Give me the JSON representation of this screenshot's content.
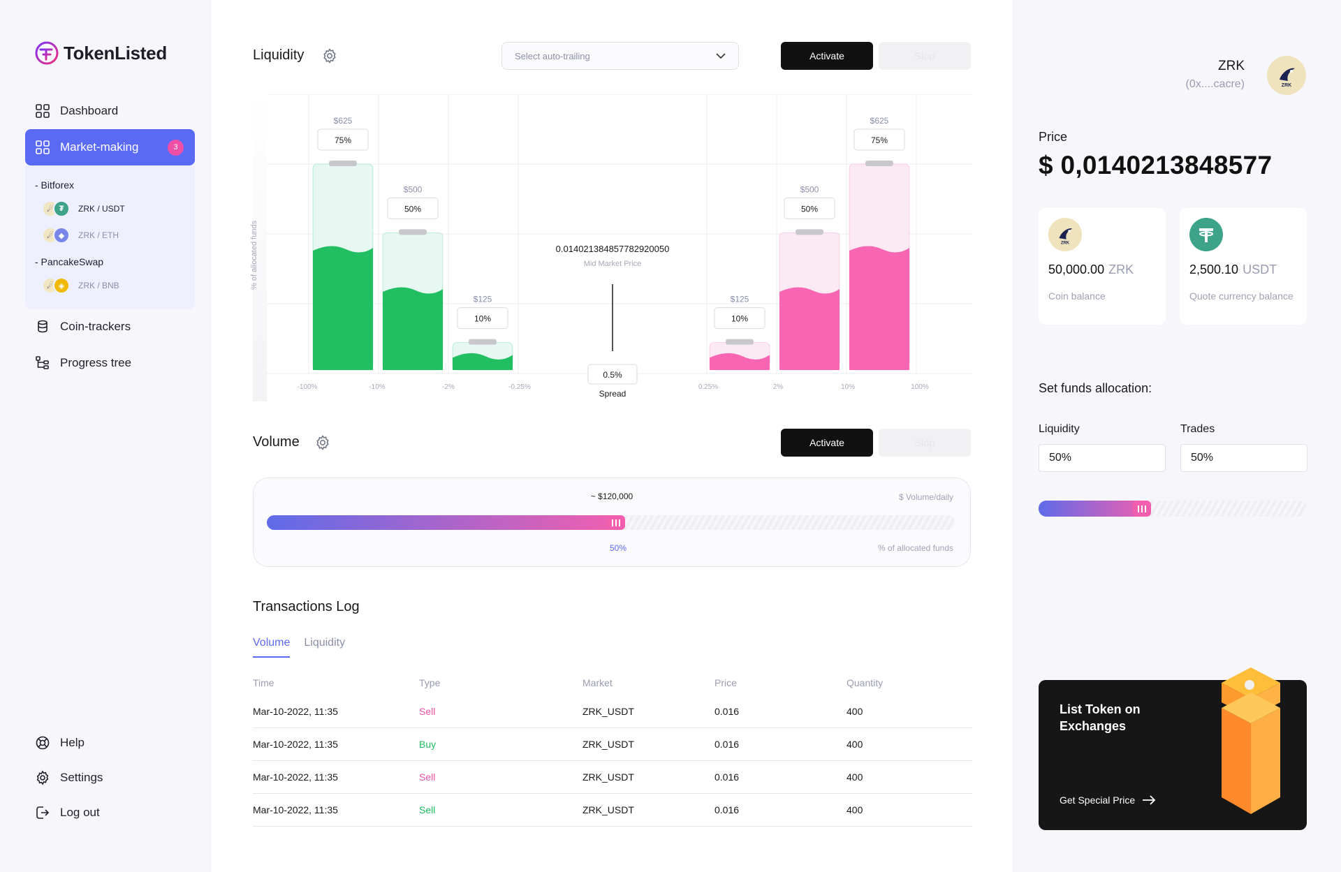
{
  "app": {
    "name": "TokenListed"
  },
  "sidebar": {
    "nav": [
      {
        "label": "Dashboard"
      },
      {
        "label": "Market-making",
        "badge": "3"
      },
      {
        "label": "Coin-trackers"
      },
      {
        "label": "Progress tree"
      }
    ],
    "exchanges": [
      {
        "name": "- Bitforex",
        "pairs": [
          "ZRK / USDT",
          "ZRK / ETH"
        ]
      },
      {
        "name": "- PancakeSwap",
        "pairs": [
          "ZRK / BNB"
        ]
      }
    ],
    "bottom": [
      {
        "label": "Help"
      },
      {
        "label": "Settings"
      },
      {
        "label": "Log out"
      }
    ]
  },
  "liquidity": {
    "title": "Liquidity",
    "select_placeholder": "Select auto-trailing",
    "activate": "Activate",
    "stop": "Stop",
    "y_axis_label": "% of allocated funds",
    "mid_price": "0.014021384857782920050",
    "mid_price_label": "Mid Market Price",
    "spread_value": "0.5%",
    "spread_label": "Spread"
  },
  "chart_data": {
    "type": "bar",
    "title": "Liquidity",
    "ylabel": "% of allocated funds",
    "x_tick_labels": [
      "-100%",
      "-10%",
      "-2%",
      "-0.25%",
      "0.25%",
      "2%",
      "10%",
      "100%"
    ],
    "series": [
      {
        "name": "buy",
        "color": "#22bf62",
        "categories": [
          "-100% to -10%",
          "-10% to -2%",
          "-2% to -0.25%"
        ],
        "amounts": [
          "$625",
          "$500",
          "$125"
        ],
        "percent_labels": [
          "75%",
          "50%",
          "10%"
        ],
        "values": [
          75,
          50,
          10
        ]
      },
      {
        "name": "sell",
        "color": "#f865b2",
        "categories": [
          "0.25% to 2%",
          "2% to 10%",
          "10% to 100%"
        ],
        "amounts": [
          "$125",
          "$500",
          "$625"
        ],
        "percent_labels": [
          "10%",
          "50%",
          "75%"
        ],
        "values": [
          10,
          50,
          75
        ]
      }
    ]
  },
  "volume": {
    "title": "Volume",
    "activate": "Activate",
    "stop": "Stop",
    "amount": "~ $120,000",
    "caption_top": "$ Volume/daily",
    "caption_bottom": "% of allocated funds",
    "percent_label": "50%",
    "fill_fraction": 0.52
  },
  "transactions": {
    "title": "Transactions Log",
    "tabs": [
      "Volume",
      "Liquidity"
    ],
    "columns": [
      "Time",
      "Type",
      "Market",
      "Price",
      "Quantity"
    ],
    "rows": [
      {
        "time": "Mar-10-2022, 11:35",
        "type": "Sell",
        "market": "ZRK_USDT",
        "price": "0.016",
        "quantity": "400",
        "type_color": "#ef4fa6"
      },
      {
        "time": "Mar-10-2022, 11:35",
        "type": "Buy",
        "market": "ZRK_USDT",
        "price": "0.016",
        "quantity": "400",
        "type_color": "#1fbd5e"
      },
      {
        "time": "Mar-10-2022, 11:35",
        "type": "Sell",
        "market": "ZRK_USDT",
        "price": "0.016",
        "quantity": "400",
        "type_color": "#ef4fa6"
      },
      {
        "time": "Mar-10-2022, 11:35",
        "type": "Sell",
        "market": "ZRK_USDT",
        "price": "0.016",
        "quantity": "400",
        "type_color": "#1fbd5e"
      }
    ]
  },
  "token": {
    "name": "ZRK",
    "address": "(0x....cacre)",
    "price_label": "Price",
    "price": "$ 0,0140213848577",
    "cards": [
      {
        "amount": "50,000.00",
        "unit": "ZRK",
        "label": "Coin balance",
        "icon": "zrk-coin-icon"
      },
      {
        "amount": "2,500.10",
        "unit": "USDT",
        "label": "Quote currency balance",
        "icon": "tether-icon"
      }
    ]
  },
  "allocation": {
    "title": "Set funds allocation:",
    "liquidity_label": "Liquidity",
    "liquidity_value": "50%",
    "trades_label": "Trades",
    "trades_value": "50%",
    "fill_fraction": 0.42
  },
  "promo": {
    "title": "List Token on Exchanges",
    "link": "Get Special Price"
  },
  "colors": {
    "accent": "#5b6af5",
    "buy": "#22bf62",
    "sell": "#f865b2",
    "badge": "#ef4fa6"
  }
}
